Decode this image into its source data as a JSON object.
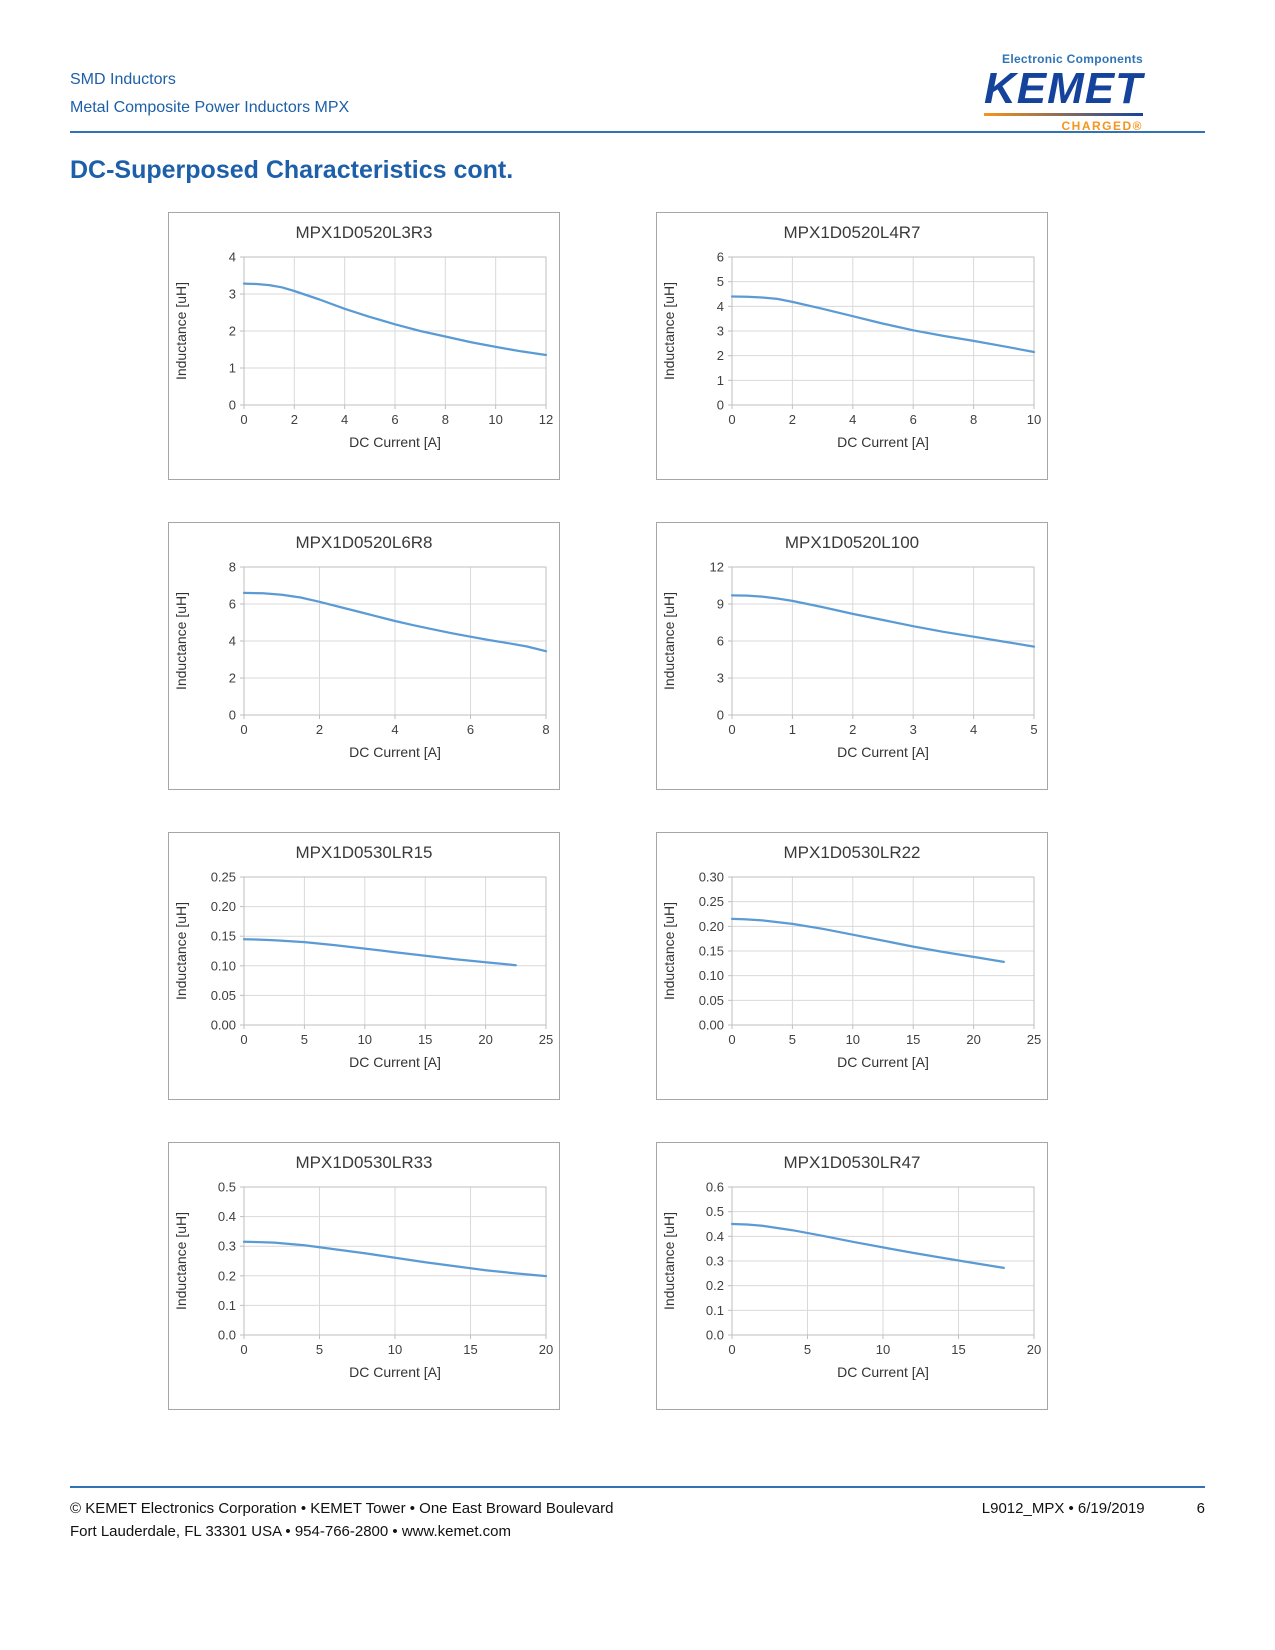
{
  "header": {
    "line1": "SMD Inductors",
    "line2": "Metal Composite Power Inductors MPX",
    "logo": {
      "tagline": "Electronic Components",
      "brand": "KEMET",
      "charged": "CHARGED®"
    }
  },
  "page_title": "DC-Superposed Characteristics cont.",
  "colors": {
    "curve": "#5b9bd5",
    "grid": "#d9d9d9",
    "plot_border": "#bfbfbf",
    "header_blue": "#1d5fa8",
    "brand_navy": "#15439c",
    "brand_orange": "#f7941d"
  },
  "chart_data": [
    {
      "type": "line",
      "title": "MPX1D0520L3R3",
      "xlabel": "DC Current [A]",
      "ylabel": "Inductance [uH]",
      "xlim": [
        0,
        12
      ],
      "ylim": [
        0,
        4
      ],
      "xticks": [
        0,
        2,
        4,
        6,
        8,
        10,
        12
      ],
      "yticks": [
        0,
        1,
        2,
        3,
        4
      ],
      "ytick_labels": [
        "0",
        "1",
        "2",
        "3",
        "4"
      ],
      "grid": true,
      "legend": false,
      "x": [
        0,
        0.5,
        1,
        1.5,
        2,
        3,
        4,
        5,
        6,
        7,
        8,
        9,
        10,
        11,
        12
      ],
      "y": [
        3.28,
        3.27,
        3.24,
        3.18,
        3.08,
        2.85,
        2.6,
        2.38,
        2.18,
        2.0,
        1.85,
        1.7,
        1.57,
        1.45,
        1.35
      ]
    },
    {
      "type": "line",
      "title": "MPX1D0520L4R7",
      "xlabel": "DC Current [A]",
      "ylabel": "Inductance [uH]",
      "xlim": [
        0,
        10
      ],
      "ylim": [
        0,
        6
      ],
      "xticks": [
        0,
        2,
        4,
        6,
        8,
        10
      ],
      "yticks": [
        0,
        1,
        2,
        3,
        4,
        5,
        6
      ],
      "ytick_labels": [
        "0",
        "1",
        "2",
        "3",
        "4",
        "5",
        "6"
      ],
      "grid": true,
      "legend": false,
      "x": [
        0,
        0.5,
        1,
        1.5,
        2,
        3,
        4,
        5,
        6,
        7,
        8,
        9,
        10
      ],
      "y": [
        4.4,
        4.39,
        4.36,
        4.3,
        4.18,
        3.9,
        3.6,
        3.3,
        3.03,
        2.8,
        2.6,
        2.38,
        2.15
      ]
    },
    {
      "type": "line",
      "title": "MPX1D0520L6R8",
      "xlabel": "DC Current [A]",
      "ylabel": "Inductance [uH]",
      "xlim": [
        0,
        8
      ],
      "ylim": [
        0,
        8
      ],
      "xticks": [
        0,
        2,
        4,
        6,
        8
      ],
      "yticks": [
        0,
        2,
        4,
        6,
        8
      ],
      "ytick_labels": [
        "0",
        "2",
        "4",
        "6",
        "8"
      ],
      "grid": true,
      "legend": false,
      "x": [
        0,
        0.5,
        1,
        1.5,
        2,
        2.5,
        3,
        3.5,
        4,
        4.5,
        5,
        5.5,
        6,
        6.5,
        7,
        7.5,
        8
      ],
      "y": [
        6.6,
        6.58,
        6.5,
        6.35,
        6.12,
        5.86,
        5.6,
        5.34,
        5.08,
        4.85,
        4.63,
        4.42,
        4.23,
        4.05,
        3.88,
        3.7,
        3.45
      ]
    },
    {
      "type": "line",
      "title": "MPX1D0520L100",
      "xlabel": "DC Current [A]",
      "ylabel": "Inductance [uH]",
      "xlim": [
        0,
        5
      ],
      "ylim": [
        0,
        12
      ],
      "xticks": [
        0,
        1,
        2,
        3,
        4,
        5
      ],
      "yticks": [
        0,
        3,
        6,
        9,
        12
      ],
      "ytick_labels": [
        "0",
        "3",
        "6",
        "9",
        "12"
      ],
      "grid": true,
      "legend": false,
      "x": [
        0,
        0.25,
        0.5,
        0.75,
        1,
        1.5,
        2,
        2.5,
        3,
        3.5,
        4,
        4.5,
        5
      ],
      "y": [
        9.7,
        9.68,
        9.6,
        9.45,
        9.25,
        8.75,
        8.2,
        7.7,
        7.2,
        6.75,
        6.35,
        5.95,
        5.55
      ]
    },
    {
      "type": "line",
      "title": "MPX1D0530LR15",
      "xlabel": "DC Current [A]",
      "ylabel": "Inductance [uH]",
      "xlim": [
        0,
        25
      ],
      "ylim": [
        0,
        0.25
      ],
      "xticks": [
        0,
        5,
        10,
        15,
        20,
        25
      ],
      "yticks": [
        0,
        0.05,
        0.1,
        0.15,
        0.2,
        0.25
      ],
      "ytick_labels": [
        "0.00",
        "0.05",
        "0.10",
        "0.15",
        "0.20",
        "0.25"
      ],
      "grid": true,
      "legend": false,
      "x": [
        0,
        1,
        2.5,
        5,
        7.5,
        10,
        12.5,
        15,
        17.5,
        20,
        22.5
      ],
      "y": [
        0.145,
        0.1445,
        0.143,
        0.14,
        0.135,
        0.129,
        0.123,
        0.117,
        0.111,
        0.106,
        0.101
      ]
    },
    {
      "type": "line",
      "title": "MPX1D0530LR22",
      "xlabel": "DC Current [A]",
      "ylabel": "Inductance [uH]",
      "xlim": [
        0,
        25
      ],
      "ylim": [
        0,
        0.3
      ],
      "xticks": [
        0,
        5,
        10,
        15,
        20,
        25
      ],
      "yticks": [
        0,
        0.05,
        0.1,
        0.15,
        0.2,
        0.25,
        0.3
      ],
      "ytick_labels": [
        "0.00",
        "0.05",
        "0.10",
        "0.15",
        "0.20",
        "0.25",
        "0.30"
      ],
      "grid": true,
      "legend": false,
      "x": [
        0,
        1,
        2.5,
        5,
        7.5,
        10,
        12.5,
        15,
        17.5,
        20,
        22.5
      ],
      "y": [
        0.215,
        0.2145,
        0.212,
        0.205,
        0.195,
        0.183,
        0.171,
        0.159,
        0.148,
        0.138,
        0.128
      ]
    },
    {
      "type": "line",
      "title": "MPX1D0530LR33",
      "xlabel": "DC Current [A]",
      "ylabel": "Inductance [uH]",
      "xlim": [
        0,
        20
      ],
      "ylim": [
        0,
        0.5
      ],
      "xticks": [
        0,
        5,
        10,
        15,
        20
      ],
      "yticks": [
        0,
        0.1,
        0.2,
        0.3,
        0.4,
        0.5
      ],
      "ytick_labels": [
        "0.0",
        "0.1",
        "0.2",
        "0.3",
        "0.4",
        "0.5"
      ],
      "grid": true,
      "legend": false,
      "x": [
        0,
        1,
        2,
        4,
        6,
        8,
        10,
        12,
        14,
        16,
        18,
        20
      ],
      "y": [
        0.315,
        0.314,
        0.312,
        0.303,
        0.29,
        0.276,
        0.261,
        0.246,
        0.232,
        0.219,
        0.208,
        0.199
      ]
    },
    {
      "type": "line",
      "title": "MPX1D0530LR47",
      "xlabel": "DC Current [A]",
      "ylabel": "Inductance [uH]",
      "xlim": [
        0,
        20
      ],
      "ylim": [
        0,
        0.6
      ],
      "xticks": [
        0,
        5,
        10,
        15,
        20
      ],
      "yticks": [
        0,
        0.1,
        0.2,
        0.3,
        0.4,
        0.5,
        0.6
      ],
      "ytick_labels": [
        "0.0",
        "0.1",
        "0.2",
        "0.3",
        "0.4",
        "0.5",
        "0.6"
      ],
      "grid": true,
      "legend": false,
      "x": [
        0,
        1,
        2,
        4,
        6,
        8,
        10,
        12,
        14,
        16,
        18
      ],
      "y": [
        0.45,
        0.448,
        0.443,
        0.425,
        0.402,
        0.378,
        0.355,
        0.333,
        0.312,
        0.292,
        0.272
      ]
    }
  ],
  "footer": {
    "left_line1": "© KEMET Electronics Corporation • KEMET Tower • One East Broward Boulevard",
    "left_line2": "Fort Lauderdale, FL 33301 USA • 954-766-2800 • www.kemet.com",
    "doc_id": "L9012_MPX • 6/19/2019",
    "page_number": "6"
  }
}
